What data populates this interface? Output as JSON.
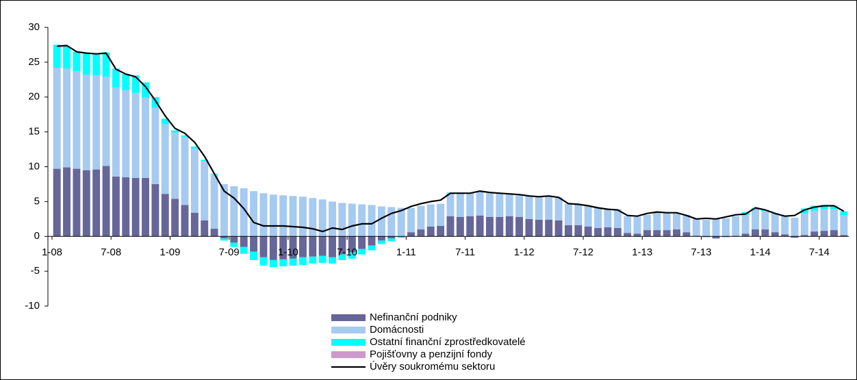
{
  "chart_data": {
    "type": "bar",
    "categories": [
      "1-08",
      null,
      null,
      null,
      null,
      null,
      "7-08",
      null,
      null,
      null,
      null,
      null,
      "1-09",
      null,
      null,
      null,
      null,
      null,
      "7-09",
      null,
      null,
      null,
      null,
      null,
      "1-10",
      null,
      null,
      null,
      null,
      null,
      "7-10",
      null,
      null,
      null,
      null,
      null,
      "1-11",
      null,
      null,
      null,
      null,
      null,
      "7-11",
      null,
      null,
      null,
      null,
      null,
      "1-12",
      null,
      null,
      null,
      null,
      null,
      "7-12",
      null,
      null,
      null,
      null,
      null,
      "1-13",
      null,
      null,
      null,
      null,
      null,
      "7-13",
      null,
      null,
      null,
      null,
      null,
      "1-14",
      null,
      null,
      null,
      null,
      null,
      "7-14",
      null,
      null
    ],
    "series": [
      {
        "name": "Nefinanční podniky",
        "color": "#666699",
        "values": [
          9.7,
          9.9,
          9.7,
          9.5,
          9.6,
          10.1,
          8.6,
          8.5,
          8.4,
          8.4,
          7.5,
          6.1,
          5.4,
          4.5,
          3.4,
          2.3,
          1.1,
          -0.3,
          -0.9,
          -1.5,
          -2.2,
          -3.0,
          -3.4,
          -3.3,
          -3.2,
          -3.0,
          -2.9,
          -2.8,
          -3.0,
          -2.6,
          -2.3,
          -1.8,
          -1.3,
          -0.6,
          -0.3,
          0.0,
          0.6,
          1.0,
          1.4,
          1.5,
          2.9,
          2.8,
          2.9,
          3.0,
          2.8,
          2.8,
          2.9,
          2.8,
          2.5,
          2.4,
          2.4,
          2.3,
          1.6,
          1.6,
          1.4,
          1.2,
          1.3,
          1.2,
          0.5,
          0.4,
          0.9,
          0.9,
          0.9,
          1.0,
          0.6,
          0.1,
          -0.1,
          -0.3,
          -0.1,
          0.1,
          0.4,
          1.0,
          1.0,
          0.6,
          0.3,
          -0.2,
          0.2,
          0.7,
          0.8,
          0.9,
          0.2
        ]
      },
      {
        "name": "Domácnosti",
        "color": "#a6caf0",
        "values": [
          14.5,
          14.2,
          14.0,
          13.7,
          13.5,
          12.8,
          12.8,
          12.5,
          12.2,
          11.5,
          11.0,
          10.0,
          9.5,
          9.8,
          9.2,
          8.5,
          7.8,
          7.5,
          7.2,
          6.9,
          6.5,
          6.2,
          6.0,
          5.9,
          5.8,
          5.7,
          5.5,
          5.3,
          5.0,
          4.8,
          4.7,
          4.6,
          4.5,
          4.3,
          4.2,
          4.1,
          3.5,
          3.4,
          3.2,
          3.2,
          3.3,
          3.4,
          3.4,
          3.5,
          3.4,
          3.4,
          3.3,
          3.2,
          3.3,
          3.3,
          3.3,
          3.3,
          3.1,
          3.0,
          3.0,
          2.9,
          2.7,
          2.7,
          2.4,
          2.4,
          2.2,
          2.5,
          2.5,
          2.4,
          2.5,
          2.4,
          2.4,
          2.5,
          2.6,
          2.8,
          2.7,
          2.8,
          2.6,
          2.6,
          2.6,
          2.7,
          3.1,
          3.0,
          3.1,
          3.0,
          2.8
        ]
      },
      {
        "name": "Ostatní finanční zprostředkovatelé",
        "color": "#00ffff",
        "values": [
          3.3,
          3.2,
          2.8,
          3.0,
          3.0,
          3.5,
          2.7,
          2.3,
          2.5,
          2.2,
          1.5,
          0.8,
          0.3,
          0.2,
          0.3,
          0.2,
          0.1,
          -0.3,
          -0.6,
          -1.0,
          -1.2,
          -1.2,
          -1.0,
          -1.0,
          -1.0,
          -1.1,
          -1.0,
          -1.0,
          -0.9,
          -0.8,
          -0.9,
          -0.8,
          -0.7,
          -0.5,
          -0.4,
          -0.2,
          0,
          0,
          0,
          0,
          0.1,
          0.1,
          0,
          0,
          0,
          0,
          0,
          0,
          0,
          0,
          0,
          0,
          0,
          0,
          0,
          0,
          0,
          0,
          0,
          0,
          0,
          0,
          0,
          0,
          0,
          0,
          0,
          0,
          0,
          0,
          0.4,
          0.3,
          0.2,
          0.1,
          0,
          0,
          0.7,
          0.7,
          0.6,
          0.5,
          0.6
        ]
      },
      {
        "name": "Pojišťovny a penzijní fondy",
        "color": "#cc99cc",
        "values": [
          0,
          0,
          0,
          0,
          0,
          0,
          0,
          0,
          0,
          0,
          0,
          0,
          0,
          0,
          0,
          0,
          0,
          0,
          0,
          0,
          0,
          0,
          0,
          0,
          0,
          0,
          0,
          0,
          0,
          0,
          0,
          0,
          0,
          0,
          0,
          0,
          0,
          0,
          0,
          0,
          0,
          0,
          0,
          0,
          0,
          0,
          0,
          0,
          0,
          0,
          0,
          0,
          0,
          0,
          0,
          0,
          0,
          0,
          0,
          0,
          0,
          0,
          0,
          0,
          0,
          0,
          0,
          0,
          0,
          0,
          0,
          0,
          0,
          0,
          0,
          0,
          0,
          0,
          0,
          0,
          0
        ]
      },
      {
        "name": "Úvěry soukromému sektoru",
        "color": "#000000",
        "type": "line",
        "values": [
          27.3,
          27.4,
          26.5,
          26.3,
          26.2,
          26.3,
          24.0,
          23.3,
          22.9,
          21.5,
          19.5,
          17.3,
          15.5,
          14.8,
          13.5,
          11.5,
          9.0,
          6.5,
          5.5,
          4.0,
          2.0,
          1.5,
          1.5,
          1.5,
          1.4,
          1.3,
          1.1,
          0.7,
          1.2,
          1.0,
          1.5,
          1.8,
          1.8,
          2.6,
          3.3,
          3.7,
          4.3,
          4.7,
          5.0,
          5.2,
          6.2,
          6.2,
          6.2,
          6.5,
          6.3,
          6.2,
          6.1,
          6.0,
          5.8,
          5.7,
          5.8,
          5.6,
          4.7,
          4.6,
          4.4,
          4.1,
          3.9,
          3.8,
          3.0,
          2.9,
          3.3,
          3.5,
          3.4,
          3.4,
          3.0,
          2.5,
          2.6,
          2.5,
          2.8,
          3.1,
          3.2,
          4.1,
          3.8,
          3.3,
          2.9,
          3.0,
          3.8,
          4.2,
          4.4,
          4.4,
          3.6
        ]
      }
    ],
    "ylim": [
      -10,
      30
    ],
    "yticks": [
      -10,
      -5,
      0,
      5,
      10,
      15,
      20,
      25,
      30
    ]
  }
}
